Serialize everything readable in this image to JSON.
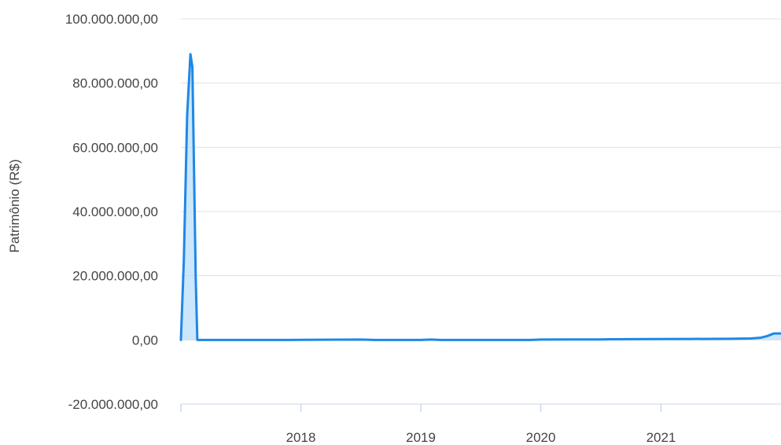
{
  "chart_data": {
    "type": "area",
    "title": "",
    "xlabel": "",
    "ylabel": "Patrimônio (R$)",
    "xlim": [
      "2017-01-01",
      "2022-01-01"
    ],
    "ylim": [
      -20000000,
      100000000
    ],
    "yticks": [
      {
        "value": 100000000,
        "label": "100.000.000,00"
      },
      {
        "value": 80000000,
        "label": "80.000.000,00"
      },
      {
        "value": 60000000,
        "label": "60.000.000,00"
      },
      {
        "value": 40000000,
        "label": "40.000.000,00"
      },
      {
        "value": 20000000,
        "label": "20.000.000,00"
      },
      {
        "value": 0,
        "label": "0,00"
      },
      {
        "value": -20000000,
        "label": "-20.000.000,00"
      }
    ],
    "xticks": [
      {
        "value": "2018-01-01",
        "label": "2018"
      },
      {
        "value": "2019-01-01",
        "label": "2019"
      },
      {
        "value": "2020-01-01",
        "label": "2020"
      },
      {
        "value": "2021-01-01",
        "label": "2021"
      }
    ],
    "grid": true,
    "colors": {
      "line": "#1E88E5",
      "fill": "#BBDEFB",
      "grid": "#E0E0E0",
      "axis": "#CCD6EB"
    },
    "series": [
      {
        "points": [
          [
            "2017-01-01",
            0
          ],
          [
            "2017-01-10",
            25000000
          ],
          [
            "2017-01-20",
            70000000
          ],
          [
            "2017-01-30",
            89000000
          ],
          [
            "2017-02-05",
            85000000
          ],
          [
            "2017-02-15",
            20000000
          ],
          [
            "2017-02-20",
            0
          ],
          [
            "2017-06-01",
            0
          ],
          [
            "2017-12-01",
            0
          ],
          [
            "2018-07-01",
            100000
          ],
          [
            "2018-08-15",
            0
          ],
          [
            "2019-01-01",
            0
          ],
          [
            "2019-02-01",
            100000
          ],
          [
            "2019-03-01",
            0
          ],
          [
            "2019-10-01",
            0
          ],
          [
            "2019-12-01",
            0
          ],
          [
            "2020-01-01",
            100000
          ],
          [
            "2020-04-01",
            150000
          ],
          [
            "2020-07-01",
            150000
          ],
          [
            "2020-08-01",
            200000
          ],
          [
            "2020-12-01",
            250000
          ],
          [
            "2021-04-01",
            300000
          ],
          [
            "2021-08-01",
            350000
          ],
          [
            "2021-10-01",
            450000
          ],
          [
            "2021-11-01",
            700000
          ],
          [
            "2021-11-20",
            1200000
          ],
          [
            "2021-12-10",
            2000000
          ],
          [
            "2022-01-01",
            2000000
          ]
        ]
      }
    ]
  }
}
